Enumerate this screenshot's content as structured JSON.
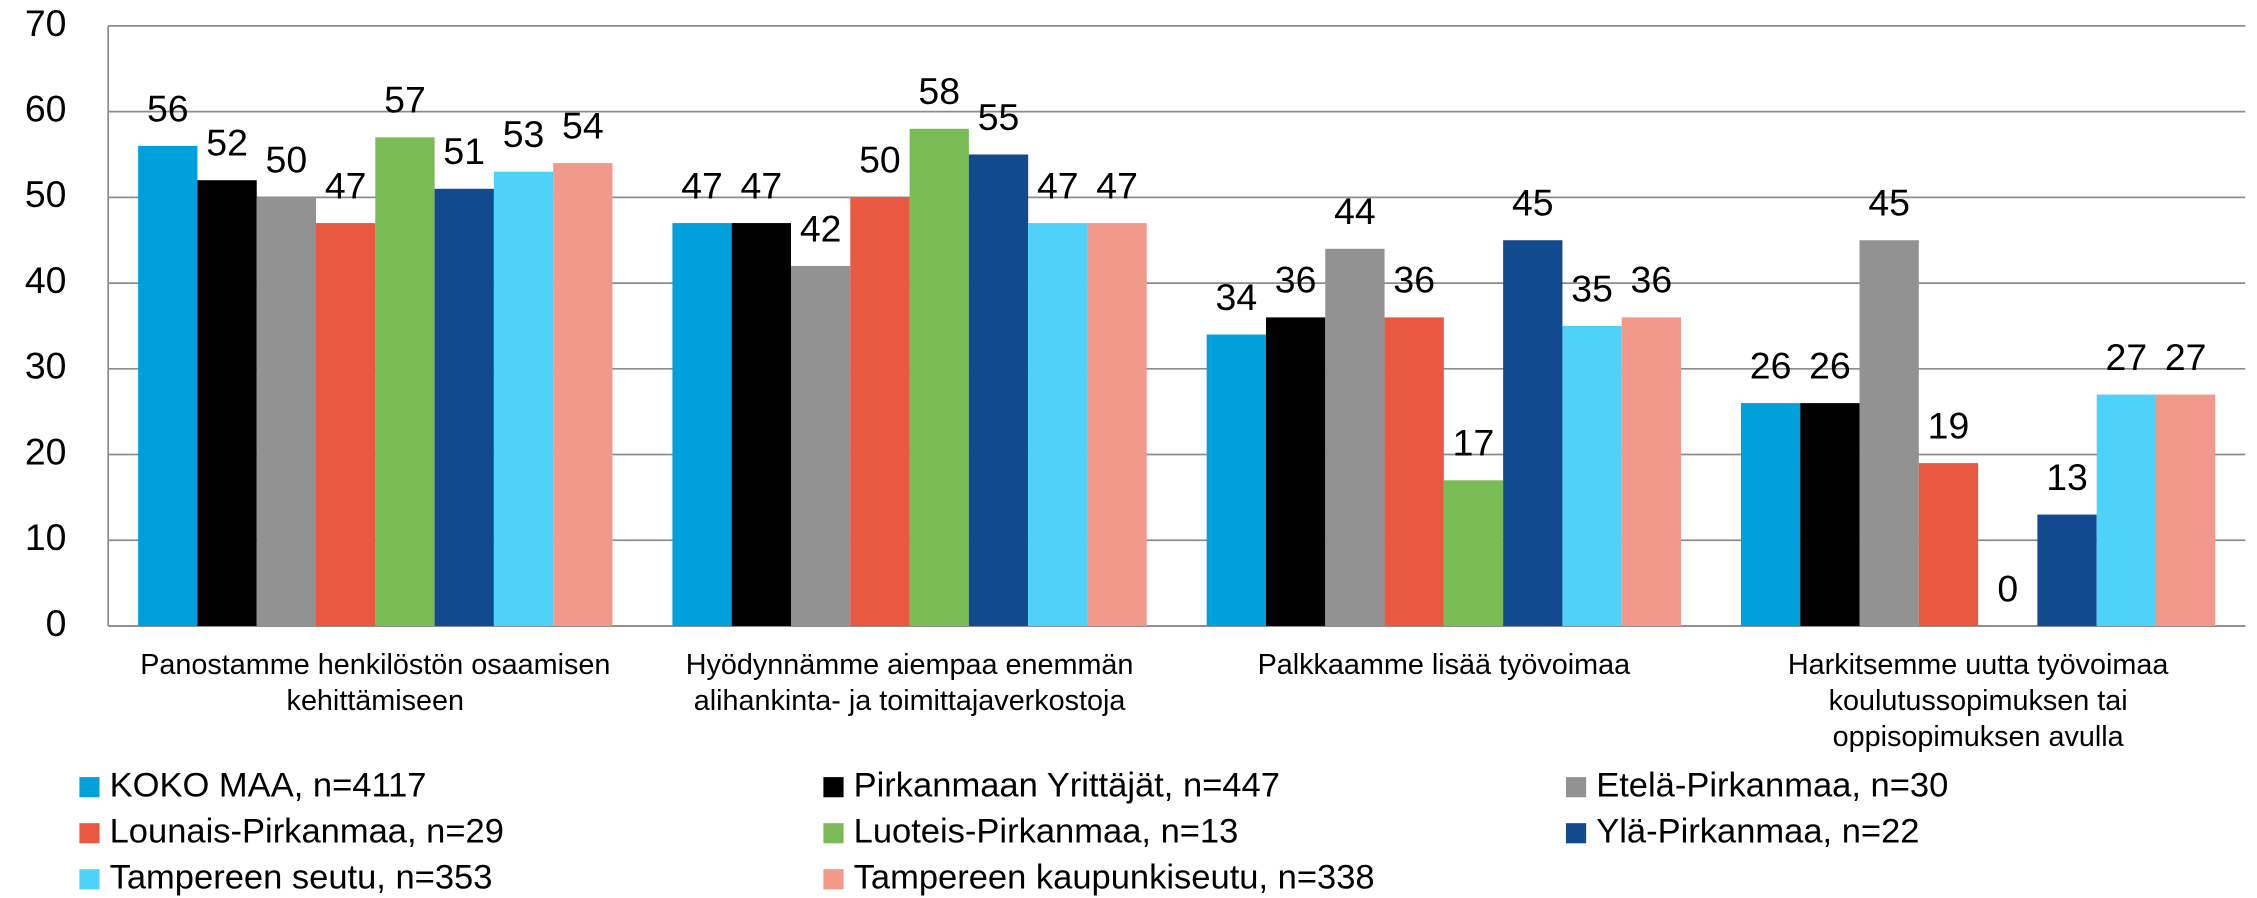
{
  "chart_data": {
    "type": "bar",
    "categories": [
      [
        "Panostamme henkilöstön  osaamisen",
        "kehittämiseen"
      ],
      [
        "Hyödynnämme aiempaa enemmän",
        "alihankinta- ja toimittajaverkostoja"
      ],
      [
        "Palkkaamme lisää työvoimaa"
      ],
      [
        "Harkitsemme uutta työvoimaa",
        "koulutussopimuksen tai",
        "oppisopimuksen avulla"
      ]
    ],
    "series": [
      {
        "name": "KOKO MAA, n=4117",
        "color": "#00a0dc",
        "values": [
          56,
          47,
          34,
          26
        ]
      },
      {
        "name": "Pirkanmaan Yrittäjät, n=447",
        "color": "#000000",
        "values": [
          52,
          47,
          36,
          26
        ]
      },
      {
        "name": "Etelä-Pirkanmaa, n=30",
        "color": "#929292",
        "values": [
          50,
          42,
          44,
          45
        ]
      },
      {
        "name": "Lounais-Pirkanmaa, n=29",
        "color": "#e95841",
        "values": [
          47,
          50,
          36,
          19
        ]
      },
      {
        "name": "Luoteis-Pirkanmaa, n=13",
        "color": "#79bc55",
        "values": [
          57,
          58,
          17,
          0
        ]
      },
      {
        "name": "Ylä-Pirkanmaa, n=22",
        "color": "#124a8f",
        "values": [
          51,
          55,
          45,
          13
        ]
      },
      {
        "name": "Tampereen seutu, n=353",
        "color": "#4fd2fa",
        "values": [
          53,
          47,
          35,
          27
        ]
      },
      {
        "name": "Tampereen kaupunkiseutu, n=338",
        "color": "#f19a8b",
        "values": [
          54,
          47,
          36,
          27
        ]
      }
    ],
    "ylim": [
      0,
      70
    ],
    "yticks": [
      0,
      10,
      20,
      30,
      40,
      50,
      60,
      70
    ],
    "grid": true
  }
}
